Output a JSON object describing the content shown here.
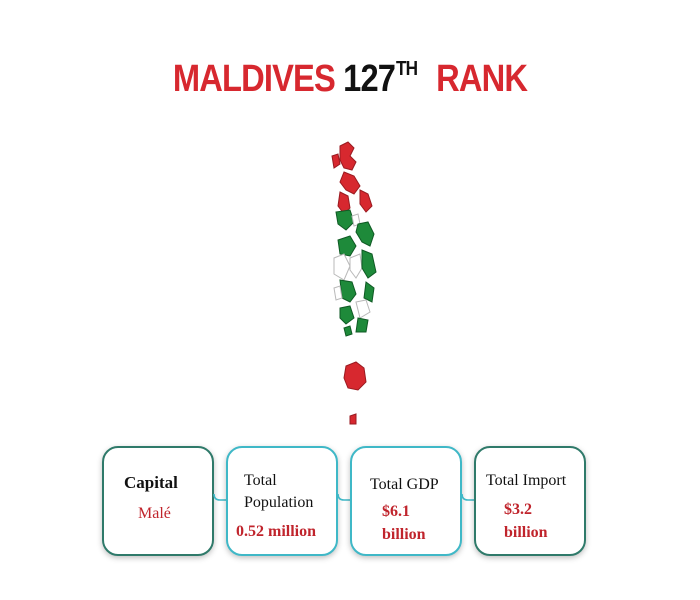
{
  "title": {
    "country": "MALDIVES",
    "rank_number": "127",
    "rank_suffix": "TH",
    "rank_word": "RANK"
  },
  "map": {
    "icon": "maldives-flag-map-icon",
    "colors": {
      "red": "#d7282f",
      "green": "#1e8a3a",
      "white": "#ffffff"
    }
  },
  "cards": [
    {
      "label": "Capital",
      "value": "Malé"
    },
    {
      "label": "Total Population",
      "value": "0.52 million"
    },
    {
      "label": "Total GDP",
      "value": "$6.1 billion"
    },
    {
      "label": "Total Import",
      "value": "$3.2 billion"
    }
  ],
  "colors": {
    "accent_red": "#d7282f",
    "card_border_teal": "#3fb8c7",
    "card_border_green": "#2f7a6a"
  }
}
